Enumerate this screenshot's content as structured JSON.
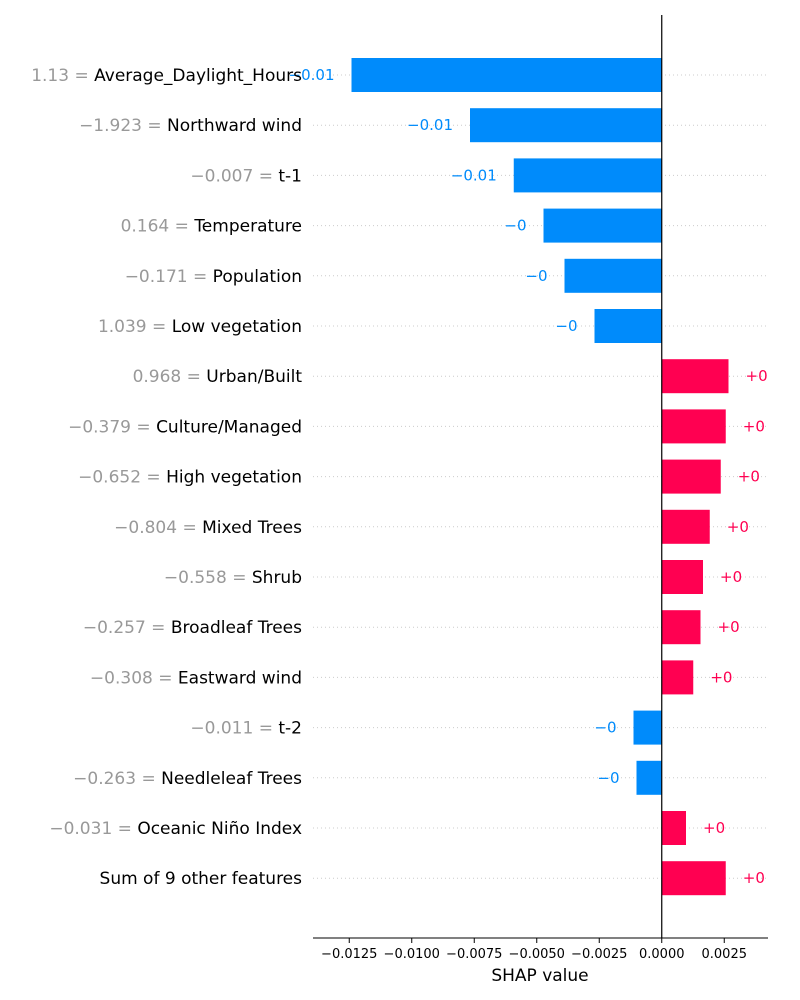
{
  "chart_data": {
    "type": "bar",
    "title": "",
    "xlabel": "SHAP value",
    "ylabel": "",
    "xlim": [
      -0.01395,
      0.00425
    ],
    "grid": "horizontal dotted per row",
    "colors": {
      "positive": "#ff0051",
      "negative": "#008bfb",
      "feature_value": "#999999",
      "feature_name": "#000000",
      "zero_line": "#000000",
      "grid": "#cccccc"
    },
    "features": [
      {
        "value": "1.13",
        "name": "Average_Daylight_Hours",
        "shap": -0.01241,
        "label": "−0.01"
      },
      {
        "value": "−1.923",
        "name": "Northward wind",
        "shap": -0.00767,
        "label": "−0.01"
      },
      {
        "value": "−0.007",
        "name": "t-1",
        "shap": -0.00592,
        "label": "−0.01"
      },
      {
        "value": "0.164",
        "name": "Temperature",
        "shap": -0.00473,
        "label": "−0"
      },
      {
        "value": "−0.171",
        "name": "Population",
        "shap": -0.00389,
        "label": "−0"
      },
      {
        "value": "1.039",
        "name": "Low vegetation",
        "shap": -0.00269,
        "label": "−0"
      },
      {
        "value": "0.968",
        "name": "Urban/Built",
        "shap": 0.00267,
        "label": "+0"
      },
      {
        "value": "−0.379",
        "name": "Culture/Managed",
        "shap": 0.00256,
        "label": "+0"
      },
      {
        "value": "−0.652",
        "name": "High vegetation",
        "shap": 0.00236,
        "label": "+0"
      },
      {
        "value": "−0.804",
        "name": "Mixed Trees",
        "shap": 0.00192,
        "label": "+0"
      },
      {
        "value": "−0.558",
        "name": "Shrub",
        "shap": 0.00165,
        "label": "+0"
      },
      {
        "value": "−0.257",
        "name": "Broadleaf Trees",
        "shap": 0.00155,
        "label": "+0"
      },
      {
        "value": "−0.308",
        "name": "Eastward wind",
        "shap": 0.00126,
        "label": "+0"
      },
      {
        "value": "−0.011",
        "name": "t-2",
        "shap": -0.00113,
        "label": "−0"
      },
      {
        "value": "−0.263",
        "name": "Needleleaf Trees",
        "shap": -0.00101,
        "label": "−0"
      },
      {
        "value": "−0.031",
        "name": "Oceanic Niño Index",
        "shap": 0.00097,
        "label": "+0"
      },
      {
        "value": "",
        "name": "Sum of 9 other features",
        "shap": 0.00256,
        "label": "+0"
      }
    ],
    "xticks": [
      {
        "value": -0.0125,
        "label": "−0.0125"
      },
      {
        "value": -0.01,
        "label": "−0.0100"
      },
      {
        "value": -0.0075,
        "label": "−0.0075"
      },
      {
        "value": -0.005,
        "label": "−0.0050"
      },
      {
        "value": -0.0025,
        "label": "−0.0025"
      },
      {
        "value": 0.0,
        "label": "0.0000"
      },
      {
        "value": 0.0025,
        "label": "0.0025"
      }
    ]
  }
}
